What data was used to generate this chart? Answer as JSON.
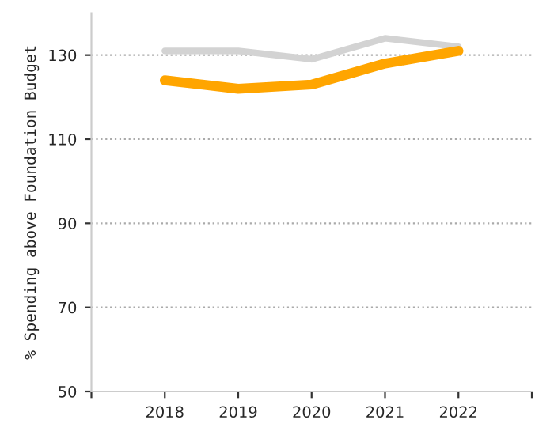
{
  "chart_data": {
    "type": "line",
    "ylabel": "% Spending above Foundation Budget",
    "x": [
      2018,
      2019,
      2020,
      2021,
      2022
    ],
    "series": [
      {
        "color": "#d3d3d3",
        "values": [
          131,
          131,
          129,
          134,
          132
        ]
      },
      {
        "color": "#ffa500",
        "values": [
          124,
          122,
          123,
          128,
          131
        ]
      }
    ],
    "xlim": [
      2017,
      2023
    ],
    "xticks": [
      {
        "value": 2017,
        "label": null
      },
      2018,
      2019,
      2020,
      2021,
      2022,
      {
        "value": 2023,
        "label": null
      }
    ],
    "ylim": [
      50,
      140
    ],
    "yticks": [
      50,
      70,
      90,
      110,
      130
    ],
    "grid": "y",
    "marker": "none",
    "line_style": "solid"
  }
}
